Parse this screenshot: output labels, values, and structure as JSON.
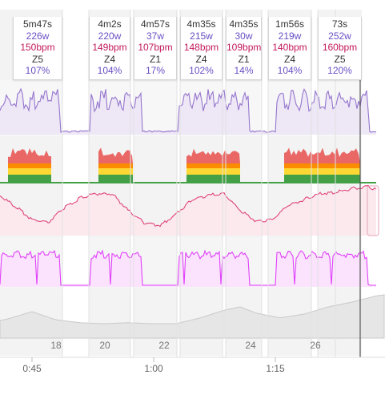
{
  "colors": {
    "power": "#9575cd",
    "power_fill": "#ede7f6",
    "hr": "#e0457b",
    "hr_fill": "#fbe9ee",
    "cadence": "#e040fb",
    "cadence_fill": "#fbe3fd",
    "altitude_fill": "#e6e6e6",
    "altitude_line": "#c9c9c9",
    "zone_green": "#43a047",
    "zone_yellow": "#fdd835",
    "zone_orange": "#fb8c00",
    "zone_red": "#e53935",
    "zone_purple": "#7e57c2",
    "interval_shade": "#f3f3f3",
    "cursor": "#555555"
  },
  "intervals": [
    {
      "duration": "5m47s",
      "power": "226w",
      "hr": "150bpm",
      "zone": "Z5",
      "percent": "107%"
    },
    {
      "duration": "4m2s",
      "power": "220w",
      "hr": "149bpm",
      "zone": "Z4",
      "percent": "104%"
    },
    {
      "duration": "4m57s",
      "power": "37w",
      "hr": "107bpm",
      "zone": "Z1",
      "percent": "17%"
    },
    {
      "duration": "4m35s",
      "power": "215w",
      "hr": "148bpm",
      "zone": "Z4",
      "percent": "102%"
    },
    {
      "duration": "4m35s",
      "power": "30w",
      "hr": "109bpm",
      "zone": "Z1",
      "percent": "14%"
    },
    {
      "duration": "1m56s",
      "power": "219w",
      "hr": "140bpm",
      "zone": "Z4",
      "percent": "104%"
    },
    {
      "duration": "73s",
      "power": "252w",
      "hr": "160bpm",
      "zone": "Z5",
      "percent": "120%"
    }
  ],
  "laps": [
    "18",
    "20",
    "22",
    "24",
    "26"
  ],
  "time_axis": [
    "0:45",
    "1:00",
    "1:15"
  ],
  "chart_data": {
    "type": "line",
    "x_unit": "minutes",
    "x_range": [
      38,
      1.5
    ],
    "series": [
      {
        "name": "power",
        "x": [
          38,
          40,
          42,
          44,
          46,
          48,
          50,
          52,
          54,
          56,
          58,
          60,
          62,
          64,
          66,
          68,
          70,
          72,
          74,
          76,
          78,
          80,
          82,
          84,
          86,
          88
        ],
        "values": [
          215,
          220,
          60,
          35,
          35,
          205,
          220,
          225,
          215,
          40,
          35,
          40,
          205,
          215,
          215,
          225,
          30,
          30,
          35,
          200,
          220,
          220,
          240,
          250,
          30,
          250
        ]
      },
      {
        "name": "hr",
        "x": [
          38,
          40,
          42,
          44,
          46,
          48,
          50,
          52,
          54,
          56,
          58,
          60,
          62,
          64,
          66,
          68,
          70,
          72,
          74,
          76,
          78,
          80,
          82,
          84,
          86,
          88
        ],
        "values": [
          140,
          145,
          130,
          112,
          108,
          128,
          142,
          148,
          148,
          125,
          108,
          104,
          120,
          140,
          146,
          148,
          125,
          110,
          112,
          132,
          140,
          148,
          150,
          155,
          158,
          150
        ]
      },
      {
        "name": "cadence",
        "x": [
          38,
          40,
          42,
          44,
          46,
          48,
          50,
          52,
          54,
          56,
          58,
          60,
          62,
          64,
          66,
          68,
          70,
          72,
          74,
          76,
          78,
          80,
          82,
          84,
          86,
          88
        ],
        "values": [
          88,
          90,
          85,
          20,
          20,
          88,
          90,
          89,
          88,
          20,
          20,
          20,
          88,
          90,
          89,
          88,
          20,
          20,
          20,
          88,
          90,
          89,
          90,
          92,
          20,
          90
        ]
      },
      {
        "name": "altitude",
        "x": [
          38,
          41,
          44,
          47,
          50,
          53,
          56,
          59,
          62,
          65,
          68,
          70,
          72,
          75,
          78,
          81,
          84,
          87,
          88
        ],
        "values": [
          10,
          20,
          35,
          18,
          12,
          10,
          12,
          10,
          10,
          22,
          38,
          45,
          32,
          22,
          30,
          45,
          55,
          68,
          70
        ]
      }
    ]
  }
}
